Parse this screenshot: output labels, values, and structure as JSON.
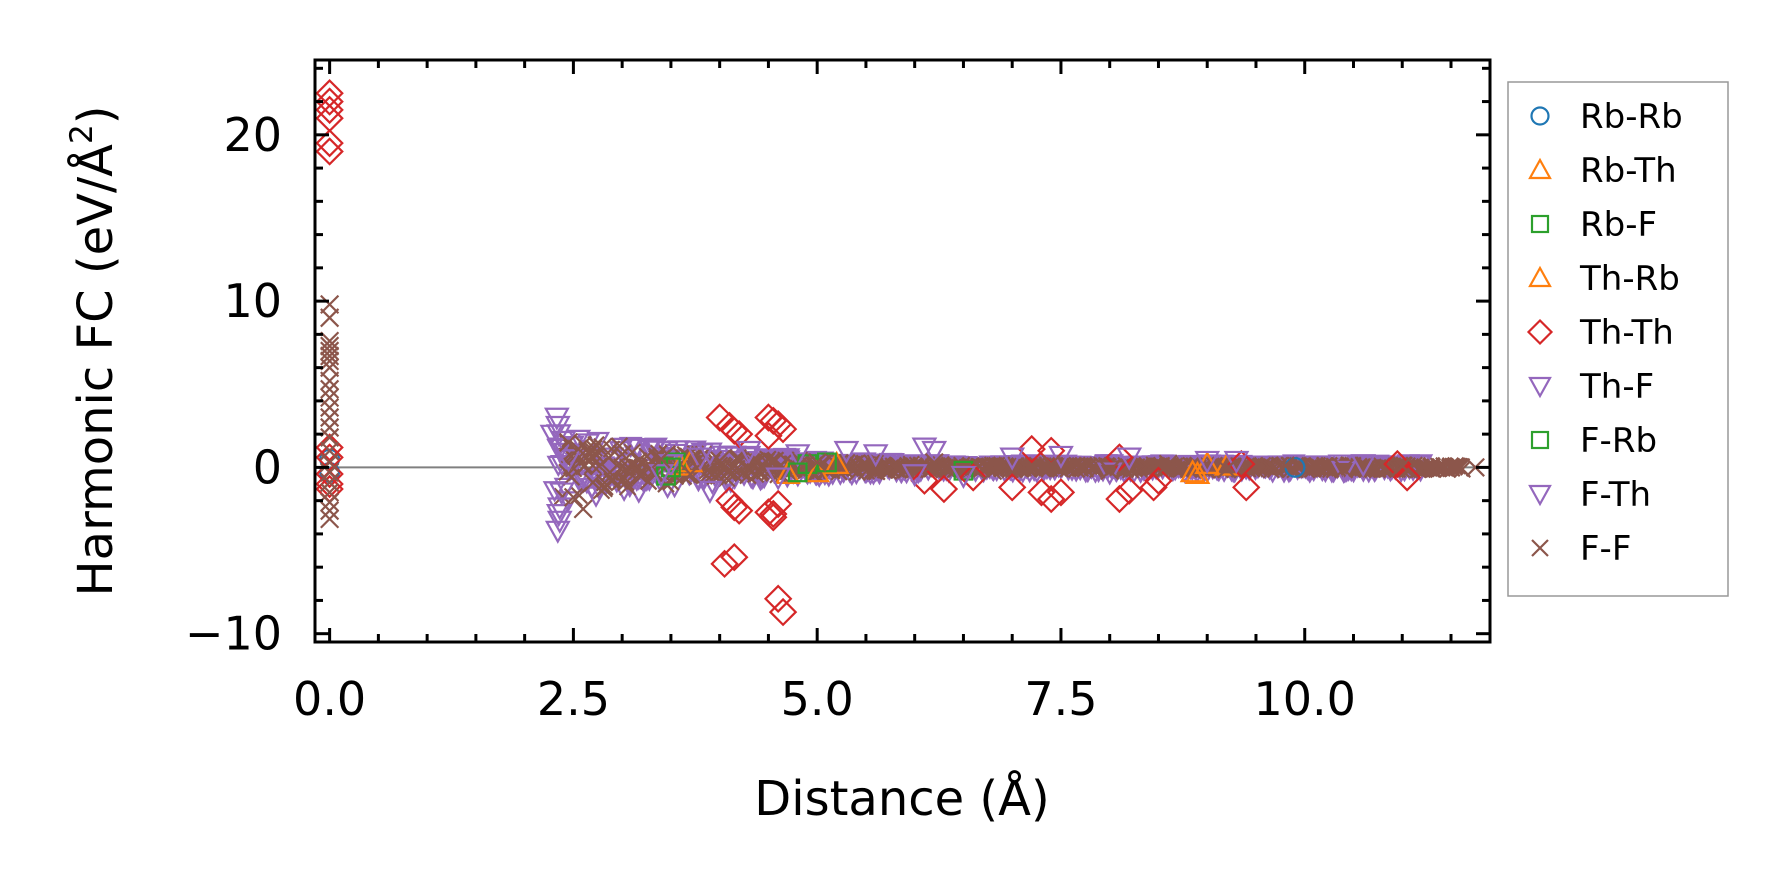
{
  "chart_data": {
    "type": "scatter",
    "title": "",
    "xlabel": "Distance (Å)",
    "ylabel_main": "Harmonic FC (eV/Å",
    "ylabel_sup": "2",
    "ylabel_close": ")",
    "xlim": [
      -0.15,
      11.9
    ],
    "ylim": [
      -10.5,
      24.5
    ],
    "x_ticks": [
      0.0,
      2.5,
      5.0,
      7.5,
      10.0
    ],
    "x_tick_labels": [
      "0.0",
      "2.5",
      "5.0",
      "7.5",
      "10.0"
    ],
    "y_ticks": [
      -10,
      0,
      10,
      20
    ],
    "y_tick_labels": [
      "−10",
      "0",
      "10",
      "20"
    ],
    "x_minor_step": 0.5,
    "y_minor_step": 2,
    "zero_line": 0,
    "legend_position": "right outside",
    "series": [
      {
        "name": "Rb-Rb",
        "marker": "circle",
        "color": "#1f77b4",
        "points": [
          [
            0.0,
            0.5
          ],
          [
            0.0,
            -0.3
          ],
          [
            9.9,
            0.0
          ]
        ]
      },
      {
        "name": "Rb-Th",
        "marker": "triangle-up",
        "color": "#ff7f0e",
        "points": [
          [
            3.6,
            0.1
          ],
          [
            4.7,
            -0.4
          ],
          [
            5.2,
            0.2
          ],
          [
            8.9,
            -0.4
          ],
          [
            9.2,
            0.1
          ]
        ]
      },
      {
        "name": "Rb-F",
        "marker": "square",
        "color": "#2ca02c",
        "points": [
          [
            3.45,
            -0.5
          ],
          [
            3.55,
            0.3
          ],
          [
            4.9,
            0.2
          ],
          [
            6.5,
            -0.2
          ]
        ]
      },
      {
        "name": "Th-Rb",
        "marker": "triangle-up",
        "color": "#ff7f0e",
        "points": [
          [
            3.7,
            0.3
          ],
          [
            5.0,
            -0.3
          ],
          [
            8.85,
            -0.3
          ],
          [
            9.0,
            0.2
          ]
        ]
      },
      {
        "name": "Th-Th",
        "marker": "diamond",
        "color": "#d62728",
        "points": [
          [
            0.0,
            22.5
          ],
          [
            0.0,
            22.0
          ],
          [
            0.0,
            21.5
          ],
          [
            0.0,
            21.0
          ],
          [
            0.0,
            19.5
          ],
          [
            0.0,
            19.0
          ],
          [
            0.0,
            1.2
          ],
          [
            0.0,
            0.6
          ],
          [
            0.0,
            -0.4
          ],
          [
            0.0,
            -1.0
          ],
          [
            0.0,
            -1.3
          ],
          [
            4.0,
            3.0
          ],
          [
            4.1,
            2.5
          ],
          [
            4.15,
            2.2
          ],
          [
            4.2,
            2.0
          ],
          [
            4.05,
            -5.8
          ],
          [
            4.15,
            -5.4
          ],
          [
            4.1,
            -2.0
          ],
          [
            4.15,
            -2.4
          ],
          [
            4.2,
            -2.6
          ],
          [
            4.5,
            3.0
          ],
          [
            4.55,
            2.8
          ],
          [
            4.6,
            2.6
          ],
          [
            4.65,
            2.3
          ],
          [
            4.5,
            1.9
          ],
          [
            4.5,
            -2.7
          ],
          [
            4.55,
            -2.8
          ],
          [
            4.55,
            -3.0
          ],
          [
            4.6,
            -2.2
          ],
          [
            4.6,
            -7.9
          ],
          [
            4.65,
            -8.7
          ],
          [
            6.1,
            -0.8
          ],
          [
            6.3,
            -1.3
          ],
          [
            6.6,
            -0.6
          ],
          [
            7.0,
            -1.2
          ],
          [
            7.2,
            1.1
          ],
          [
            7.3,
            -1.5
          ],
          [
            7.4,
            1.0
          ],
          [
            7.4,
            -1.9
          ],
          [
            7.5,
            -1.5
          ],
          [
            8.1,
            0.6
          ],
          [
            8.1,
            -1.9
          ],
          [
            8.2,
            -1.4
          ],
          [
            8.45,
            -1.2
          ],
          [
            8.5,
            -0.8
          ],
          [
            9.35,
            0.2
          ],
          [
            9.4,
            -1.2
          ],
          [
            10.95,
            0.2
          ],
          [
            11.05,
            -0.6
          ]
        ]
      },
      {
        "name": "Th-F",
        "marker": "triangle-down",
        "color": "#9467bd",
        "points": [
          [
            2.33,
            3.0
          ],
          [
            2.35,
            2.0
          ],
          [
            2.37,
            1.2
          ],
          [
            2.38,
            -1.5
          ],
          [
            2.35,
            -2.8
          ],
          [
            2.34,
            -3.8
          ],
          [
            2.45,
            0.5
          ],
          [
            3.5,
            0.2
          ],
          [
            3.8,
            0.6
          ],
          [
            3.9,
            -1.4
          ],
          [
            3.9,
            0.9
          ],
          [
            4.3,
            1.0
          ],
          [
            4.8,
            0.8
          ],
          [
            5.3,
            1.0
          ],
          [
            6.1,
            1.2
          ],
          [
            6.2,
            1.0
          ],
          [
            6.5,
            -0.5
          ],
          [
            7.5,
            0.7
          ],
          [
            8.2,
            0.6
          ],
          [
            9.3,
            0.4
          ],
          [
            10.6,
            0.2
          ]
        ]
      },
      {
        "name": "F-Rb",
        "marker": "square",
        "color": "#2ca02c",
        "points": [
          [
            3.5,
            0.0
          ],
          [
            4.8,
            -0.3
          ],
          [
            5.1,
            0.3
          ]
        ]
      },
      {
        "name": "F-Th",
        "marker": "triangle-down",
        "color": "#9467bd",
        "points": [
          [
            2.34,
            2.5
          ],
          [
            2.36,
            -2.4
          ],
          [
            2.36,
            -3.2
          ],
          [
            2.4,
            1.6
          ],
          [
            3.4,
            -0.4
          ],
          [
            4.6,
            -0.6
          ],
          [
            5.6,
            0.8
          ],
          [
            6.0,
            -0.4
          ],
          [
            7.0,
            0.6
          ],
          [
            8.0,
            -0.3
          ],
          [
            9.0,
            0.4
          ],
          [
            10.4,
            -0.2
          ]
        ]
      },
      {
        "name": "F-F",
        "marker": "x",
        "color": "#8c564b",
        "points": [
          [
            0.0,
            9.8
          ],
          [
            0.0,
            9.0
          ],
          [
            0.0,
            7.6
          ],
          [
            0.0,
            7.3
          ],
          [
            0.0,
            7.0
          ],
          [
            0.0,
            6.7
          ],
          [
            0.0,
            6.4
          ],
          [
            0.0,
            6.0
          ],
          [
            0.0,
            5.2
          ],
          [
            0.0,
            4.7
          ],
          [
            0.0,
            4.2
          ],
          [
            0.0,
            3.6
          ],
          [
            0.0,
            3.0
          ],
          [
            0.0,
            2.4
          ],
          [
            0.0,
            1.8
          ],
          [
            0.0,
            1.0
          ],
          [
            0.0,
            0.3
          ],
          [
            0.0,
            -0.3
          ],
          [
            0.0,
            -0.9
          ],
          [
            0.0,
            -1.5
          ],
          [
            0.0,
            -2.1
          ],
          [
            0.0,
            -2.6
          ],
          [
            0.0,
            -3.1
          ],
          [
            2.45,
            1.5
          ],
          [
            2.5,
            -1.8
          ],
          [
            2.55,
            1.1
          ],
          [
            2.6,
            -2.5
          ],
          [
            2.65,
            0.9
          ],
          [
            2.7,
            -0.9
          ],
          [
            2.8,
            1.2
          ],
          [
            2.9,
            -0.7
          ],
          [
            3.0,
            0.8
          ],
          [
            3.2,
            -0.5
          ],
          [
            3.4,
            0.5
          ],
          [
            3.7,
            -0.4
          ],
          [
            4.0,
            0.4
          ],
          [
            4.4,
            -0.3
          ],
          [
            5.0,
            0.3
          ],
          [
            5.6,
            -0.2
          ],
          [
            6.2,
            0.3
          ],
          [
            6.8,
            -0.2
          ],
          [
            7.4,
            0.2
          ],
          [
            8.0,
            -0.2
          ],
          [
            8.6,
            0.2
          ],
          [
            9.2,
            -0.1
          ],
          [
            9.8,
            0.1
          ],
          [
            10.4,
            -0.1
          ],
          [
            11.0,
            0.1
          ],
          [
            11.3,
            0.0
          ],
          [
            11.4,
            0.0
          ],
          [
            11.5,
            0.0
          ],
          [
            11.6,
            0.0
          ],
          [
            11.75,
            0.0
          ]
        ]
      }
    ],
    "bands": [
      {
        "series": "Th-F",
        "x_start": 2.3,
        "x_end": 11.2,
        "amp_start": 2.4,
        "amp_end": 0.25,
        "color": "#9467bd",
        "marker": "triangle-down"
      },
      {
        "series": "F-F",
        "x_start": 2.4,
        "x_end": 11.6,
        "amp_start": 1.9,
        "amp_end": 0.15,
        "color": "#8c564b",
        "marker": "x"
      }
    ]
  }
}
